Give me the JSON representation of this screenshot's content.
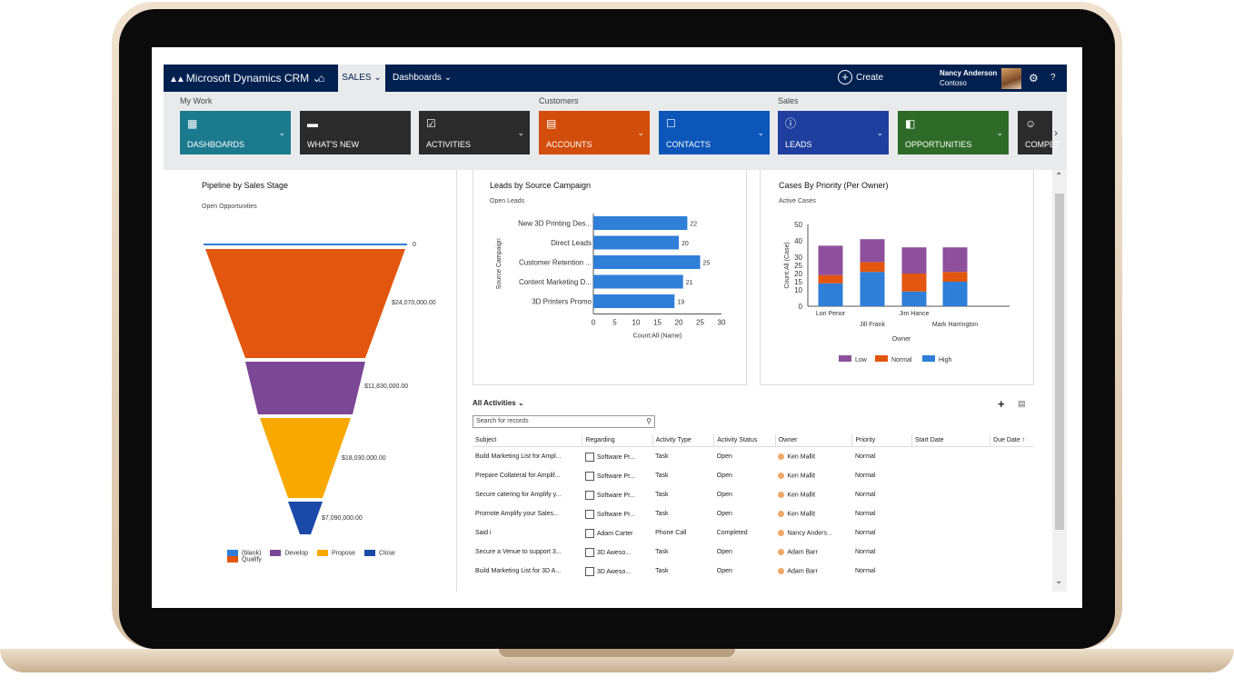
{
  "topnav": {
    "brand": "Microsoft Dynamics CRM",
    "brand_caret": "⌄",
    "home_icon": "⌂",
    "sales": "SALES ⌄",
    "dashboards": "Dashboards ⌄",
    "create": "Create",
    "user_name": "Nancy Anderson",
    "user_org": "Contoso",
    "gear_icon": "⚙",
    "help": "?"
  },
  "sitemap": {
    "groups": {
      "my_work": "My Work",
      "customers": "Customers",
      "sales": "Sales"
    },
    "tiles": [
      {
        "label": "DASHBOARDS",
        "color": "#1c7a8e",
        "icon": "dashboards-icon"
      },
      {
        "label": "WHAT'S NEW",
        "color": "#2b2b2b",
        "icon": "whats-new-icon"
      },
      {
        "label": "ACTIVITIES",
        "color": "#2b2b2b",
        "icon": "activities-icon"
      },
      {
        "label": "ACCOUNTS",
        "color": "#d24d0b",
        "icon": "accounts-icon"
      },
      {
        "label": "CONTACTS",
        "color": "#0b56b8",
        "icon": "contacts-icon"
      },
      {
        "label": "LEADS",
        "color": "#1f3f9e",
        "icon": "leads-icon"
      },
      {
        "label": "OPPORTUNITIES",
        "color": "#2f6b28",
        "icon": "opportunities-icon"
      },
      {
        "label": "COMPET",
        "color": "#2b2b2b",
        "icon": "competitors-icon"
      }
    ]
  },
  "pipeline": {
    "title": "Pipeline by Sales Stage",
    "subtitle": "Open Opportunities",
    "chart_data": {
      "type": "funnel",
      "stages": [
        "Qualify",
        "Develop",
        "Propose",
        "Close"
      ],
      "values": [
        24070000,
        11830000,
        18030000,
        7090000
      ],
      "labels": [
        "24,070,000.00",
        "11,830,000.00",
        "18,030,000.00",
        "$7,090,000.00"
      ],
      "blank_value": 0,
      "colors": {
        "(blank)": "#2f7ed8",
        "Qualify": "#e2560f",
        "Develop": "#7c4795",
        "Propose": "#f9a800",
        "Close": "#1a49a8"
      }
    },
    "legend": [
      "(blank)",
      "Develop",
      "Propose",
      "Close",
      "Qualify"
    ],
    "blank_label": "0",
    "labels": [
      "$24,070,000.00",
      "$11,830,000.00",
      "$18,030,000.00",
      "$7,090,000.00"
    ]
  },
  "leads": {
    "title": "Leads by Source Campaign",
    "subtitle": "Open Leads",
    "chart_data": {
      "type": "bar",
      "orientation": "horizontal",
      "categories": [
        "New 3D Printing Des...",
        "Direct Leads",
        "Customer Retention ...",
        "Content Marketing D...",
        "3D Printers Promo"
      ],
      "values": [
        22,
        20,
        25,
        21,
        19
      ],
      "xlabel": "Count:All (Name)",
      "ylabel": "Source Campaign",
      "xlim": [
        0,
        30
      ],
      "xticks": [
        0,
        5,
        10,
        15,
        20,
        25,
        30
      ],
      "color": "#2f7ed8"
    }
  },
  "cases": {
    "title": "Cases By Priority (Per Owner)",
    "subtitle": "Active Cases",
    "chart_data": {
      "type": "bar",
      "stacked": true,
      "categories": [
        "Lori Penor",
        "Jill Frank",
        "Jim Hance",
        "Mark Harrington"
      ],
      "series": [
        {
          "name": "High",
          "values": [
            14,
            21,
            9,
            15
          ],
          "color": "#2f7ed8"
        },
        {
          "name": "Normal",
          "values": [
            5,
            6,
            11,
            6
          ],
          "color": "#e2560f"
        },
        {
          "name": "Low",
          "values": [
            18,
            14,
            16,
            15
          ],
          "color": "#8e4f9c"
        }
      ],
      "xlabel": "Owner",
      "ylabel": "Count:All (Case)",
      "ylim": [
        0,
        50
      ],
      "yticks": [
        0,
        10,
        15,
        20,
        25,
        30,
        40,
        50
      ]
    },
    "legend": [
      "Low",
      "Normal",
      "High"
    ]
  },
  "activities": {
    "view_label": "All Activities",
    "view_caret": "⌄",
    "search_placeholder": "Search for records",
    "add_icon": "+",
    "columns": [
      "Subject",
      "Regarding",
      "Activity Type",
      "Activity Status",
      "Owner",
      "Priority",
      "Start Date",
      "Due Date ↑"
    ],
    "rows": [
      [
        "Build Marketing List for Ampl...",
        "Software Pr...",
        "Task",
        "Open",
        "Ken Mallit",
        "Normal",
        "",
        ""
      ],
      [
        "Prepare Collateral for Amplif...",
        "Software Pr...",
        "Task",
        "Open",
        "Ken Mallit",
        "Normal",
        "",
        ""
      ],
      [
        "Secure catering for Amplify y...",
        "Software Pr...",
        "Task",
        "Open",
        "Ken Mallit",
        "Normal",
        "",
        ""
      ],
      [
        "Promote Amplify your Sales...",
        "Software Pr...",
        "Task",
        "Open",
        "Ken Mallit",
        "Normal",
        "",
        ""
      ],
      [
        "Said i",
        "Adam Carter",
        "Phone Call",
        "Completed",
        "Nancy Anders...",
        "Normal",
        "",
        ""
      ],
      [
        "Secure a Venue to support 3...",
        "3D Aweso...",
        "Task",
        "Open",
        "Adam Barr",
        "Normal",
        "",
        ""
      ],
      [
        "Build Marketing List for 3D A...",
        "3D Aweso...",
        "Task",
        "Open",
        "Adam Barr",
        "Normal",
        "",
        ""
      ]
    ]
  }
}
